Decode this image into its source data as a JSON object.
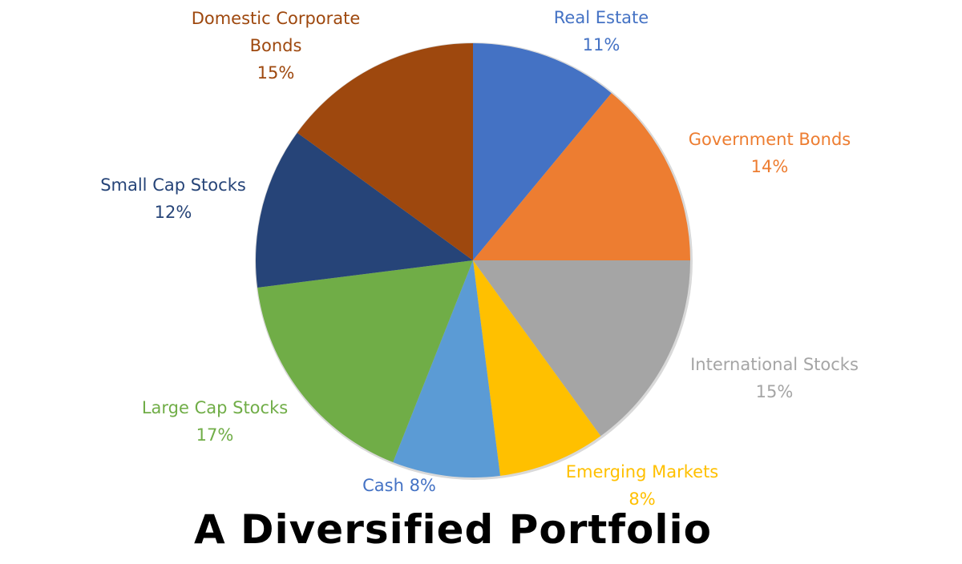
{
  "chart_data": {
    "type": "pie",
    "title": "A Diversified Portfolio",
    "start_angle_deg": 0,
    "direction": "clockwise",
    "slices": [
      {
        "label": "Real Estate",
        "value": 11,
        "color": "#4472C4"
      },
      {
        "label": "Government Bonds",
        "value": 14,
        "color": "#ED7D31"
      },
      {
        "label": "International Stocks",
        "value": 15,
        "color": "#A5A5A5"
      },
      {
        "label": "Emerging Markets",
        "value": 8,
        "color": "#FFC000"
      },
      {
        "label": "Cash",
        "value": 8,
        "color": "#5B9BD5"
      },
      {
        "label": "Large Cap Stocks",
        "value": 17,
        "color": "#70AD47"
      },
      {
        "label": "Small Cap Stocks",
        "value": 12,
        "color": "#264478"
      },
      {
        "label": "Domestic Corporate Bonds",
        "value": 15,
        "color": "#9E480E"
      }
    ],
    "categories": [
      "Real Estate",
      "Government Bonds",
      "International Stocks",
      "Emerging Markets",
      "Cash",
      "Large Cap Stocks",
      "Small Cap Stocks",
      "Domestic Corporate Bonds"
    ],
    "values": [
      11,
      14,
      15,
      8,
      8,
      17,
      12,
      15
    ],
    "unit": "%",
    "legend": "none (data labels outside slices)"
  },
  "labels": {
    "real_estate": {
      "line1": "Real Estate",
      "line2": "11%"
    },
    "government_bonds": {
      "line1": "Government Bonds",
      "line2": "14%"
    },
    "international_stocks": {
      "line1": "International Stocks",
      "line2": "15%"
    },
    "emerging_markets": {
      "line1": "Emerging Markets",
      "line2": "8%"
    },
    "cash": {
      "line1": "Cash 8%"
    },
    "large_cap": {
      "line1": "Large Cap Stocks",
      "line2": "17%"
    },
    "small_cap": {
      "line1": "Small Cap Stocks",
      "line2": "12%"
    },
    "domestic_corp": {
      "line1": "Domestic Corporate",
      "line2": "Bonds",
      "line3": "15%"
    }
  },
  "title": "A Diversified Portfolio"
}
